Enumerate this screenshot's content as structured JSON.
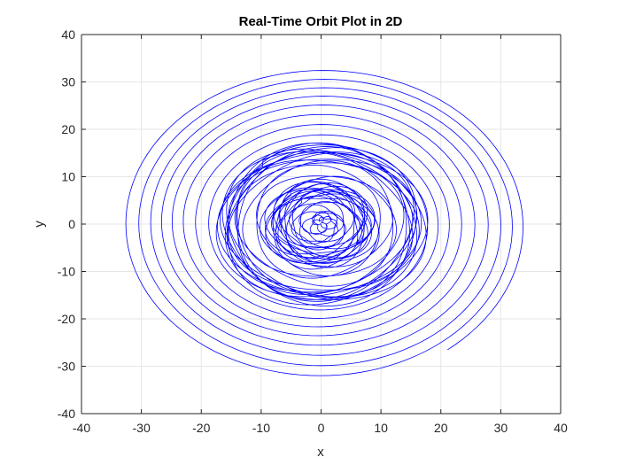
{
  "chart_data": {
    "type": "line",
    "title": "Real-Time Orbit Plot in 2D",
    "xlabel": "x",
    "ylabel": "y",
    "xlim": [
      -40,
      40
    ],
    "ylim": [
      -40,
      40
    ],
    "xticks": [
      -40,
      -30,
      -20,
      -10,
      0,
      10,
      20,
      30,
      40
    ],
    "yticks": [
      -40,
      -30,
      -20,
      -10,
      0,
      10,
      20,
      30,
      40
    ],
    "grid": true,
    "legend": "none",
    "series_color": "#0000ff",
    "series": [
      {
        "description_points": "outer spiral start near (22, -26.5), loops shrink inward to ~17 radius band, then inner dense rings ~8 radius, centre near (0, 0)",
        "x": [
          22.0,
          34.0,
          0.5,
          -33.0,
          -1.0,
          30.5,
          0.0,
          -30.0,
          0.0,
          27.5,
          0.0,
          -27.0,
          0.0,
          24.5,
          0.0,
          -24.0,
          0.0,
          21.5,
          0.0,
          -21.0,
          0.0,
          18.5,
          0.0,
          -18.0,
          0.0,
          17.0,
          0.0,
          -17.0,
          0.0,
          16.5,
          0.0,
          -16.0,
          0.0,
          13.0,
          0.0,
          -12.5,
          0.0,
          9.0,
          0.0,
          -9.0,
          0.0,
          8.5,
          0.0,
          -8.5,
          0.0,
          7.0,
          0.0,
          -6.5,
          0.0,
          4.0,
          0.0,
          -3.5,
          0.0,
          2.0,
          0.0,
          -1.5,
          0.0
        ],
        "y": [
          -26.5,
          0.0,
          33.5,
          0.0,
          -33.0,
          0.0,
          31.0,
          0.0,
          -30.5,
          0.0,
          28.0,
          0.0,
          -27.5,
          0.0,
          25.0,
          0.0,
          -24.5,
          0.0,
          22.0,
          0.0,
          -21.5,
          0.0,
          19.0,
          0.0,
          -18.5,
          0.0,
          17.0,
          0.0,
          -16.5,
          0.0,
          16.0,
          0.0,
          -15.5,
          0.0,
          12.0,
          0.0,
          -12.0,
          0.0,
          9.0,
          0.0,
          -8.5,
          0.0,
          8.5,
          0.0,
          -8.0,
          0.0,
          6.0,
          0.0,
          -6.0,
          0.0,
          3.5,
          0.0,
          -3.0,
          0.0,
          1.5,
          0.0,
          -1.0
        ]
      }
    ]
  }
}
